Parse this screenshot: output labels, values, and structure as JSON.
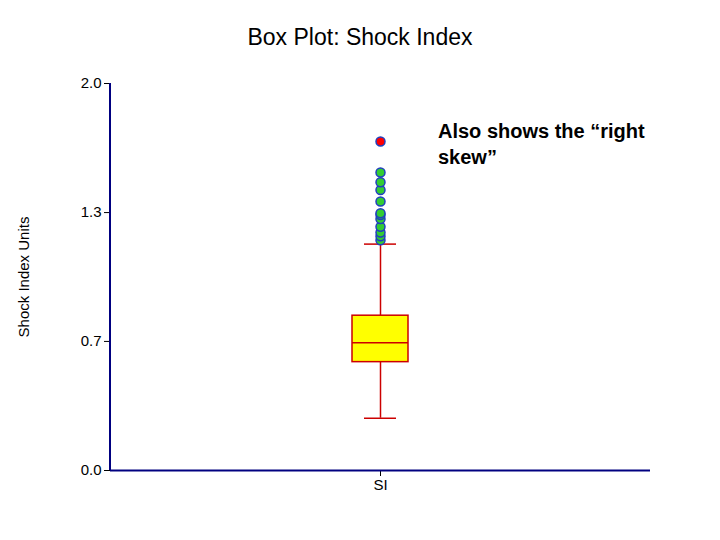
{
  "chart_data": {
    "type": "box",
    "title": "Box Plot: Shock Index",
    "ylabel": "Shock Index Units",
    "annotation": "Also shows the “right skew”",
    "categories": [
      "SI"
    ],
    "box": {
      "whisker_low": 0.27,
      "q1": 0.56,
      "median": 0.66,
      "q3": 0.8,
      "whisker_high": 1.17
    },
    "color": "#ffff00",
    "outliers": {
      "values": [
        1.19,
        1.21,
        1.23,
        1.26,
        1.3,
        1.32,
        1.33,
        1.39,
        1.45,
        1.49,
        1.54
      ],
      "color": "#33cc33"
    },
    "extreme_outliers": {
      "values": [
        1.7
      ],
      "color": "#ff0000"
    },
    "ylim": [
      0,
      2
    ],
    "yticks": [
      {
        "value": 0,
        "label": "0.0"
      },
      {
        "value": 0.667,
        "label": "0.7"
      },
      {
        "value": 1.333,
        "label": "1.3"
      },
      {
        "value": 2,
        "label": "2.0"
      }
    ],
    "grid": false
  }
}
